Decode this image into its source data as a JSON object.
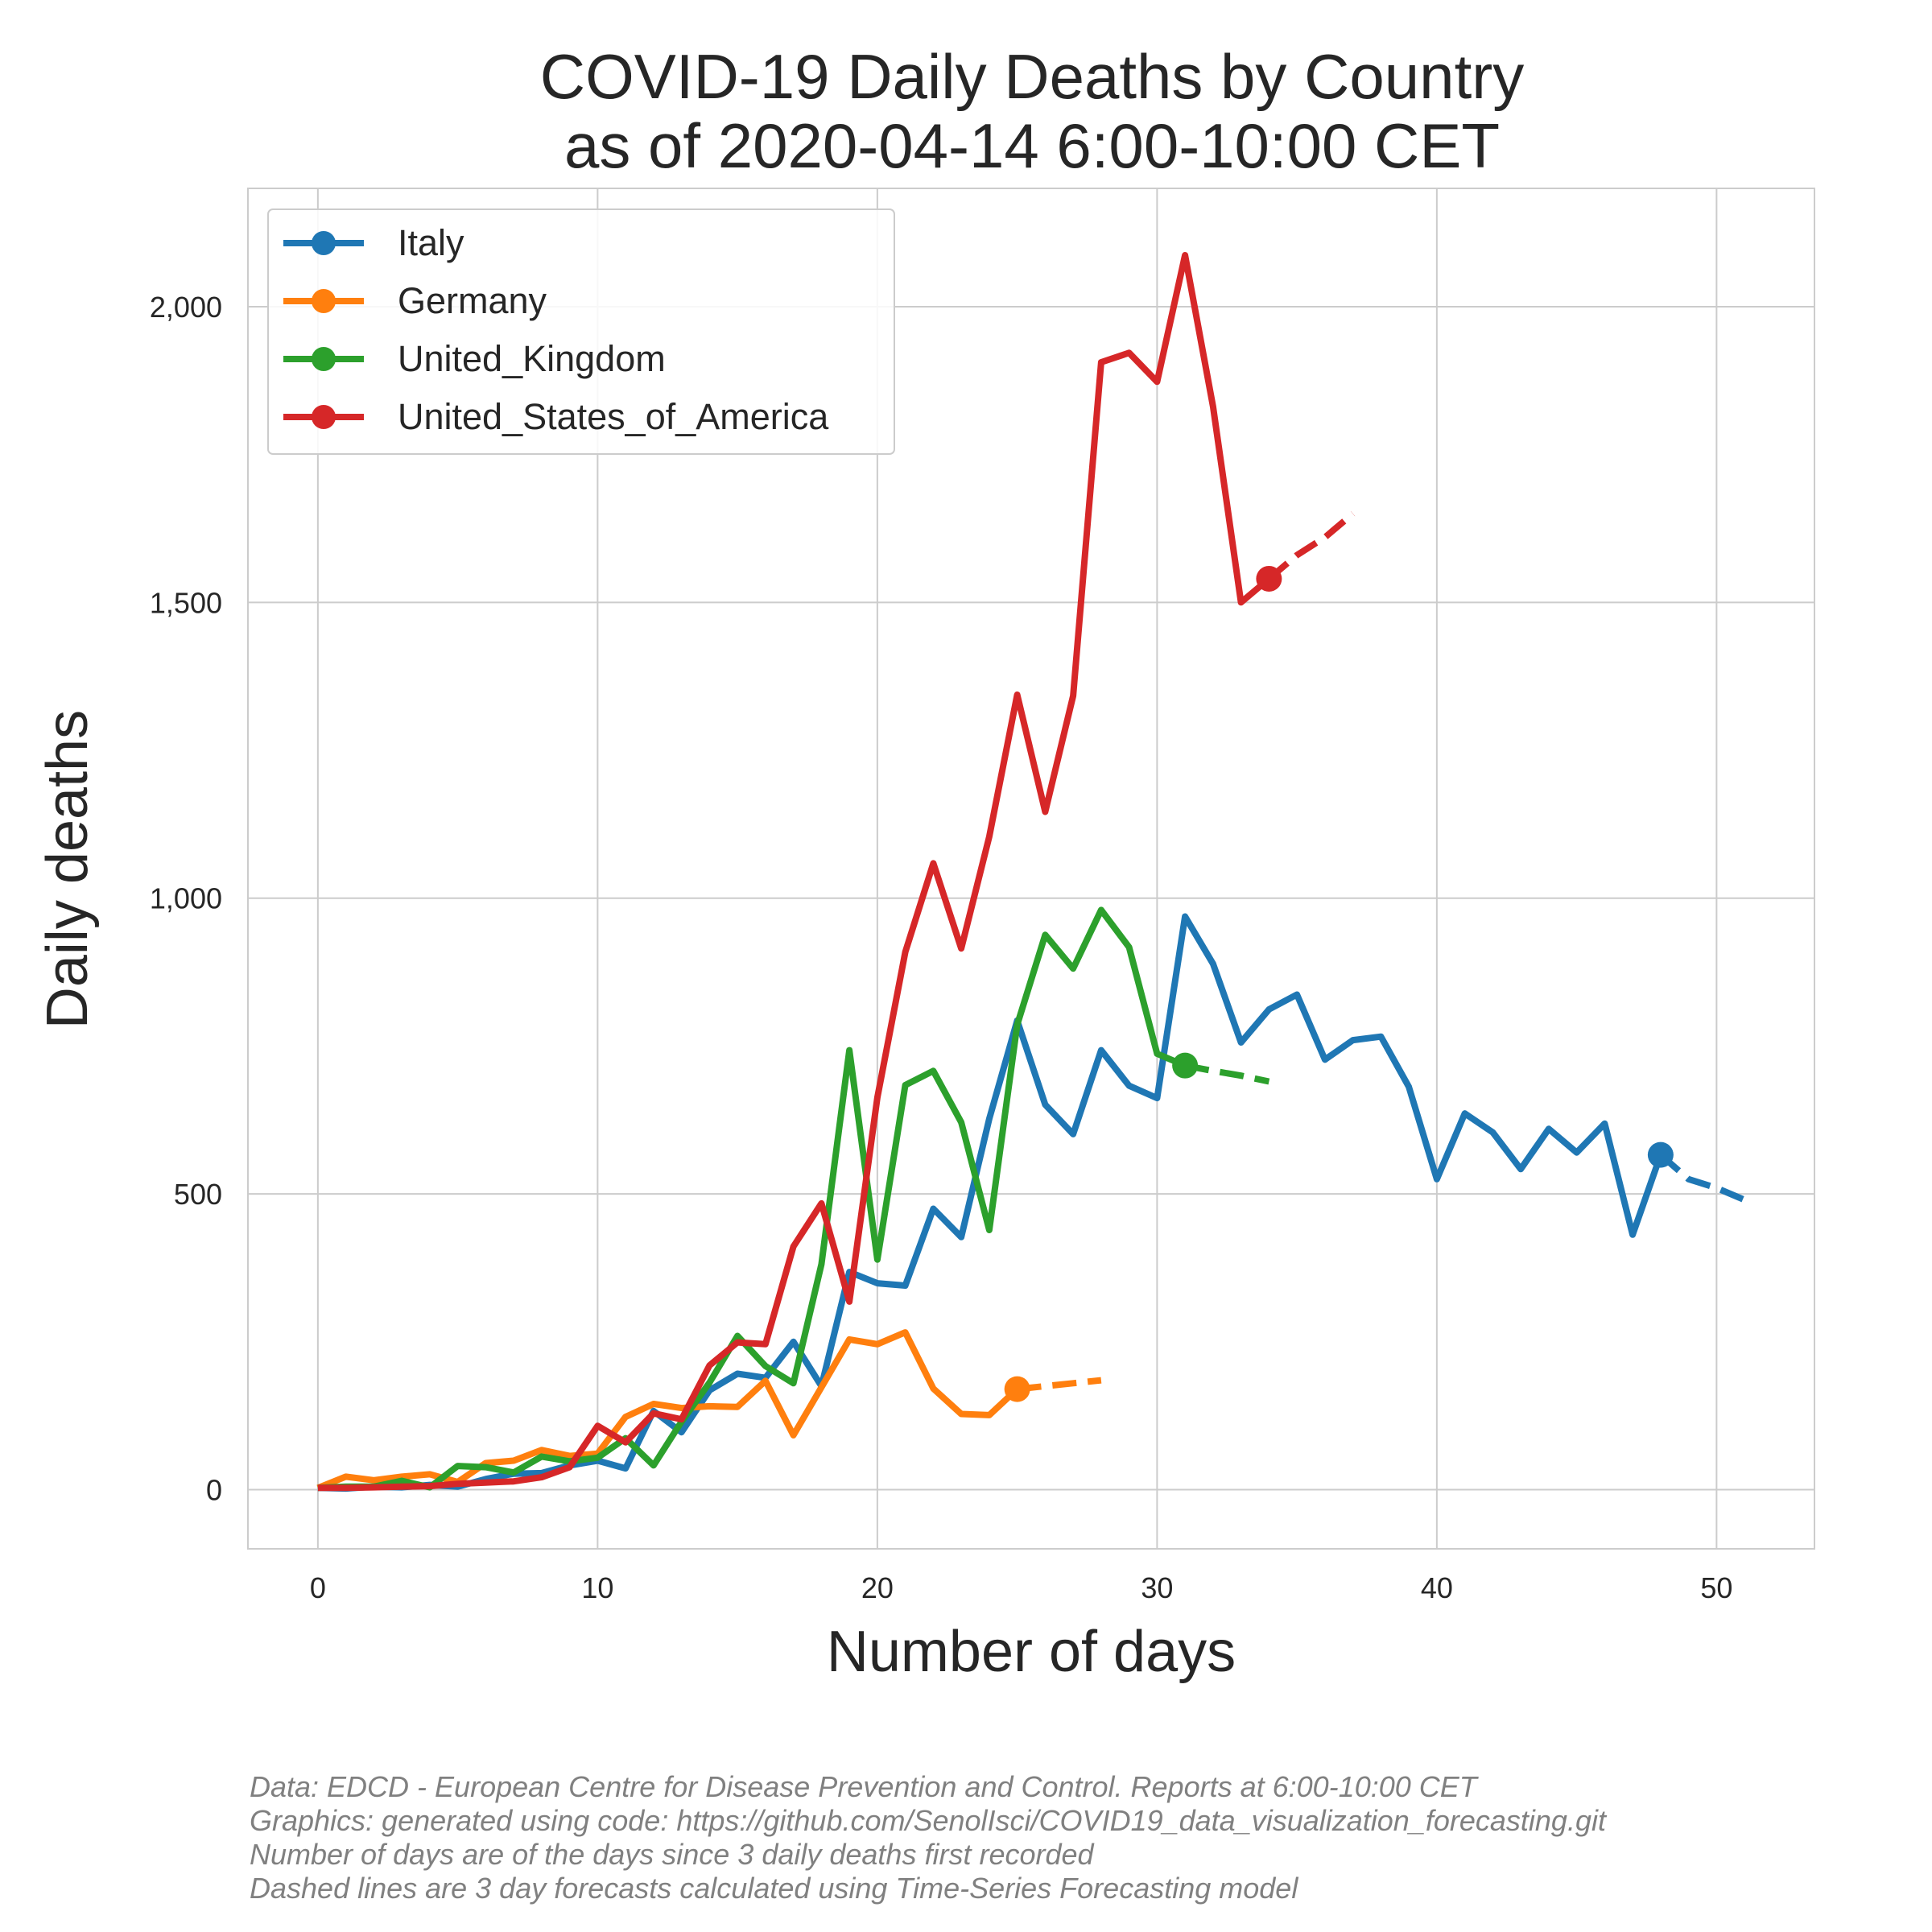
{
  "chart_data": {
    "type": "line",
    "title": "COVID-19 Daily Deaths by Country",
    "subtitle": "as of 2020-04-14 6:00-10:00 CET",
    "xlabel": "Number of days",
    "ylabel": "Daily deaths",
    "xlim": [
      -2.5,
      53.5
    ],
    "ylim": [
      -100,
      2200
    ],
    "x_ticks": [
      0,
      10,
      20,
      30,
      40,
      50
    ],
    "x_tick_labels": [
      "0",
      "10",
      "20",
      "30",
      "40",
      "50"
    ],
    "y_ticks": [
      0,
      500,
      1000,
      1500,
      2000
    ],
    "y_tick_labels": [
      "0",
      "500",
      "1,000",
      "1,500",
      "2,000"
    ],
    "grid": true,
    "legend_position": "top-left",
    "series": [
      {
        "name": "Italy",
        "color": "#1f77b4",
        "x_start": 0,
        "values": [
          3,
          2,
          5,
          4,
          8,
          5,
          18,
          27,
          28,
          41,
          49,
          36,
          133,
          97,
          168,
          196,
          189,
          250,
          175,
          368,
          349,
          345,
          475,
          427,
          627,
          793,
          651,
          601,
          743,
          683,
          662,
          969,
          889,
          756,
          812,
          837,
          727,
          760,
          766,
          681,
          525,
          636,
          604,
          542,
          610,
          570,
          619,
          431,
          566
        ],
        "forecast": {
          "x": [
            48,
            49,
            50,
            51
          ],
          "values": [
            566,
            525,
            510,
            490
          ]
        }
      },
      {
        "name": "Germany",
        "color": "#ff7f0e",
        "x_start": 0,
        "values": [
          3,
          22,
          16,
          22,
          26,
          13,
          45,
          49,
          67,
          57,
          61,
          123,
          145,
          138,
          141,
          140,
          184,
          92,
          173,
          254,
          246,
          266,
          171,
          128,
          126,
          170
        ],
        "forecast": {
          "x": [
            25,
            26,
            27,
            28
          ],
          "values": [
            170,
            175,
            180,
            185
          ]
        }
      },
      {
        "name": "United_Kingdom",
        "color": "#2ca02c",
        "x_start": 0,
        "values": [
          3,
          5,
          5,
          15,
          4,
          40,
          38,
          29,
          56,
          48,
          54,
          87,
          41,
          115,
          181,
          260,
          209,
          180,
          381,
          743,
          389,
          684,
          708,
          621,
          439,
          786,
          938,
          881,
          980,
          917,
          737,
          717
        ],
        "forecast": {
          "x": [
            31,
            32,
            33,
            34
          ],
          "values": [
            717,
            708,
            700,
            690
          ]
        }
      },
      {
        "name": "United_States_of_America",
        "color": "#d62728",
        "x_start": 0,
        "values": [
          3,
          3,
          4,
          5,
          6,
          10,
          12,
          14,
          21,
          38,
          108,
          80,
          129,
          119,
          210,
          249,
          246,
          411,
          484,
          318,
          663,
          909,
          1059,
          915,
          1104,
          1344,
          1146,
          1342,
          1906,
          1922,
          1873,
          2087,
          1831,
          1500,
          1540
        ],
        "forecast": {
          "x": [
            34,
            35,
            36,
            37
          ],
          "values": [
            1540,
            1580,
            1610,
            1650
          ]
        }
      }
    ]
  },
  "footnotes": [
    "Data: EDCD - European Centre for Disease Prevention and Control. Reports at 6:00-10:00 CET",
    "Graphics: generated using code: https://github.com/SenolIsci/COVID19_data_visualization_forecasting.git",
    "Number of days are of the days since 3 daily deaths first recorded",
    "Dashed lines are 3 day forecasts calculated using Time-Series Forecasting model"
  ]
}
